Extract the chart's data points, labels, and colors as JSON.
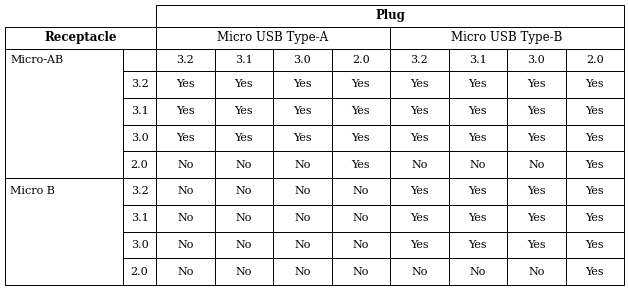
{
  "title": "Plug",
  "col_header_1": "Micro USB Type-A",
  "col_header_2": "Micro USB Type-B",
  "row_header_main": "Receptacle",
  "row_group_1": "Micro-AB",
  "row_group_2": "Micro B",
  "table_data": [
    [
      "",
      "3.2",
      "3.1",
      "3.0",
      "2.0",
      "3.2",
      "3.1",
      "3.0",
      "2.0"
    ],
    [
      "3.2",
      "Yes",
      "Yes",
      "Yes",
      "Yes",
      "Yes",
      "Yes",
      "Yes",
      "Yes"
    ],
    [
      "3.1",
      "Yes",
      "Yes",
      "Yes",
      "Yes",
      "Yes",
      "Yes",
      "Yes",
      "Yes"
    ],
    [
      "3.0",
      "Yes",
      "Yes",
      "Yes",
      "Yes",
      "Yes",
      "Yes",
      "Yes",
      "Yes"
    ],
    [
      "2.0",
      "No",
      "No",
      "No",
      "Yes",
      "No",
      "No",
      "No",
      "Yes"
    ],
    [
      "3.2",
      "No",
      "No",
      "No",
      "No",
      "Yes",
      "Yes",
      "Yes",
      "Yes"
    ],
    [
      "3.1",
      "No",
      "No",
      "No",
      "No",
      "Yes",
      "Yes",
      "Yes",
      "Yes"
    ],
    [
      "3.0",
      "No",
      "No",
      "No",
      "No",
      "Yes",
      "Yes",
      "Yes",
      "Yes"
    ],
    [
      "2.0",
      "No",
      "No",
      "No",
      "No",
      "No",
      "No",
      "No",
      "Yes"
    ]
  ],
  "bg_color": "#ffffff",
  "line_color": "#000000",
  "font_family": "DejaVu Serif",
  "header_fontsize": 8.5,
  "cell_fontsize": 8.0
}
